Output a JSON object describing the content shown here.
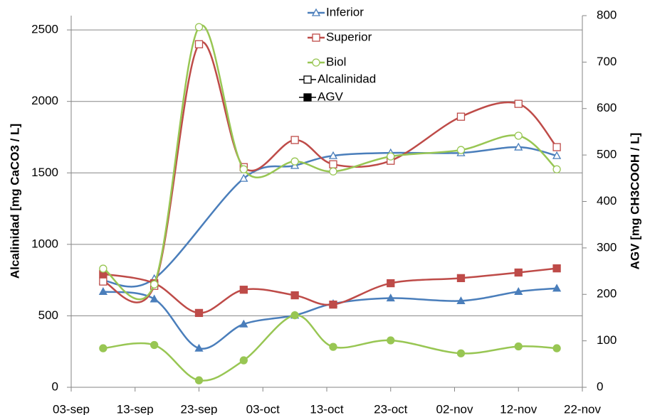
{
  "chart_data": {
    "type": "line",
    "y_label": "Alcalinidad [mg CaCO3 / L]",
    "y2_label": "AGV [mg CH3COOH / L]",
    "xlim": [
      246,
      326
    ],
    "xticks": [
      {
        "value": 246,
        "label": "03-sep"
      },
      {
        "value": 256,
        "label": "13-sep"
      },
      {
        "value": 266,
        "label": "23-sep"
      },
      {
        "value": 276,
        "label": "03-oct"
      },
      {
        "value": 286,
        "label": "13-oct"
      },
      {
        "value": 296,
        "label": "23-oct"
      },
      {
        "value": 306,
        "label": "02-nov"
      },
      {
        "value": 316,
        "label": "12-nov"
      },
      {
        "value": 326,
        "label": "22-nov"
      }
    ],
    "ylim": [
      0,
      2600
    ],
    "yticks": [
      0,
      500,
      1000,
      1500,
      2000,
      2500
    ],
    "y2lim": [
      0,
      800
    ],
    "y2ticks": [
      0,
      100,
      200,
      300,
      400,
      500,
      600,
      700,
      800
    ],
    "grid": true,
    "x": [
      251,
      259,
      266,
      273,
      281,
      287,
      296,
      307,
      316,
      322
    ],
    "series": [
      {
        "name": "Inferior",
        "color": "#4a7ebb",
        "marker": "triangle",
        "x": [
          251,
          259,
          273,
          281,
          287,
          296,
          307,
          316,
          322
        ],
        "values": [
          746,
          760,
          1461,
          1551,
          1620,
          1640,
          1640,
          1680,
          1620
        ],
        "agv": [
          206,
          190,
          84,
          136,
          155,
          180,
          192,
          186,
          206,
          213
        ]
      },
      {
        "name": "Superior",
        "color": "#be4b48",
        "marker": "square",
        "values": [
          740,
          710,
          2400,
          1540,
          1730,
          1560,
          1585,
          1893,
          1983,
          1680
        ],
        "agv": [
          244,
          224,
          160,
          210,
          198,
          178,
          224,
          235,
          247,
          256
        ]
      },
      {
        "name": "Biol",
        "color": "#98c653",
        "marker": "circle",
        "values": [
          830,
          720,
          2520,
          1525,
          1580,
          1510,
          1615,
          1660,
          1760,
          1525
        ],
        "agv": [
          84,
          91,
          15,
          58,
          155,
          87,
          101,
          73,
          88,
          84
        ]
      }
    ],
    "marker_legend": [
      {
        "name": "Alcalinidad",
        "filled": false
      },
      {
        "name": "AGV",
        "filled": true
      }
    ]
  }
}
